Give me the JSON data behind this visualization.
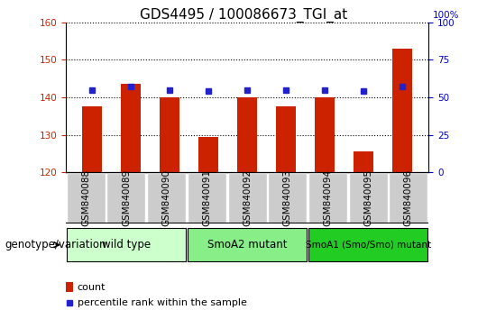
{
  "title": "GDS4495 / 100086673_TGI_at",
  "samples": [
    "GSM840088",
    "GSM840089",
    "GSM840090",
    "GSM840091",
    "GSM840092",
    "GSM840093",
    "GSM840094",
    "GSM840095",
    "GSM840096"
  ],
  "counts": [
    137.5,
    143.5,
    140.0,
    129.5,
    140.0,
    137.5,
    140.0,
    125.5,
    153.0
  ],
  "percentile_ranks": [
    55,
    57,
    55,
    54,
    55,
    55,
    55,
    54,
    57
  ],
  "ylim_left": [
    120,
    160
  ],
  "ylim_right": [
    0,
    100
  ],
  "yticks_left": [
    120,
    130,
    140,
    150,
    160
  ],
  "yticks_right": [
    0,
    25,
    50,
    75,
    100
  ],
  "groups": [
    {
      "label": "wild type",
      "start": 0,
      "end": 3,
      "color": "#ccffcc"
    },
    {
      "label": "SmoA2 mutant",
      "start": 3,
      "end": 6,
      "color": "#88ee88"
    },
    {
      "label": "SmoA1 (Smo/Smo) mutant",
      "start": 6,
      "end": 9,
      "color": "#22cc22"
    }
  ],
  "bar_color": "#cc2200",
  "dot_color": "#2222cc",
  "bar_width": 0.5,
  "genotype_label": "genotype/variation",
  "legend_count_label": "count",
  "legend_percentile_label": "percentile rank within the sample",
  "title_fontsize": 11,
  "tick_fontsize": 7.5,
  "label_fontsize": 8,
  "group_label_fontsize": 8.5,
  "genotype_fontsize": 8.5,
  "sample_box_color": "#cccccc",
  "right_axis_color": "#0000cc"
}
